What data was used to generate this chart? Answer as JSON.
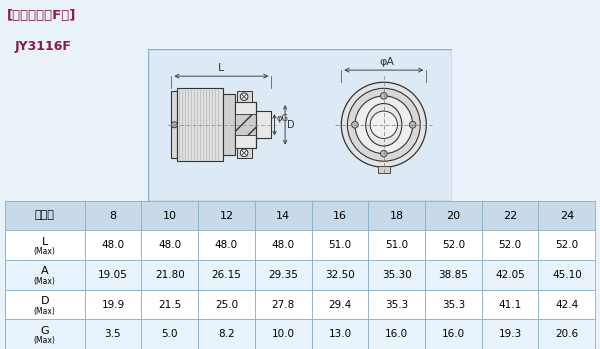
{
  "title_bracket": "[直式插头、F类]",
  "title_model": "JY3116F",
  "title_color": "#8B1A4A",
  "model_color": "#8B1A4A",
  "header_row": [
    "壳体号",
    "8",
    "10",
    "12",
    "14",
    "16",
    "18",
    "20",
    "22",
    "24"
  ],
  "row_labels_main": [
    "L",
    "A",
    "D",
    "G"
  ],
  "row_labels_sub": [
    "(Max)",
    "(Max)",
    "(Max)",
    "(Max)"
  ],
  "table_data": [
    [
      "48.0",
      "48.0",
      "48.0",
      "48.0",
      "51.0",
      "51.0",
      "52.0",
      "52.0",
      "52.0"
    ],
    [
      "19.05",
      "21.80",
      "26.15",
      "29.35",
      "32.50",
      "35.30",
      "38.85",
      "42.05",
      "45.10"
    ],
    [
      "19.9",
      "21.5",
      "25.0",
      "27.8",
      "29.4",
      "35.3",
      "35.3",
      "41.1",
      "42.4"
    ],
    [
      "3.5",
      "5.0",
      "8.2",
      "10.0",
      "13.0",
      "16.0",
      "16.0",
      "19.3",
      "20.6"
    ]
  ],
  "bg_color": "#eaf2fa",
  "table_bg": "#ffffff",
  "table_header_bg": "#c8daea",
  "table_row_bg_alt": "#e8f3fb",
  "table_row_bg": "#ffffff",
  "table_border_color": "#8ab0c8",
  "diagram_bg": "#ddeaf5",
  "diagram_border": "#8ab0c8",
  "text_color": "#000000",
  "dim_line_color": "#444444",
  "line_color": "#333333",
  "phi_A_label": "φA",
  "L_label": "L",
  "phiG_label": "φG",
  "D_label": "D"
}
